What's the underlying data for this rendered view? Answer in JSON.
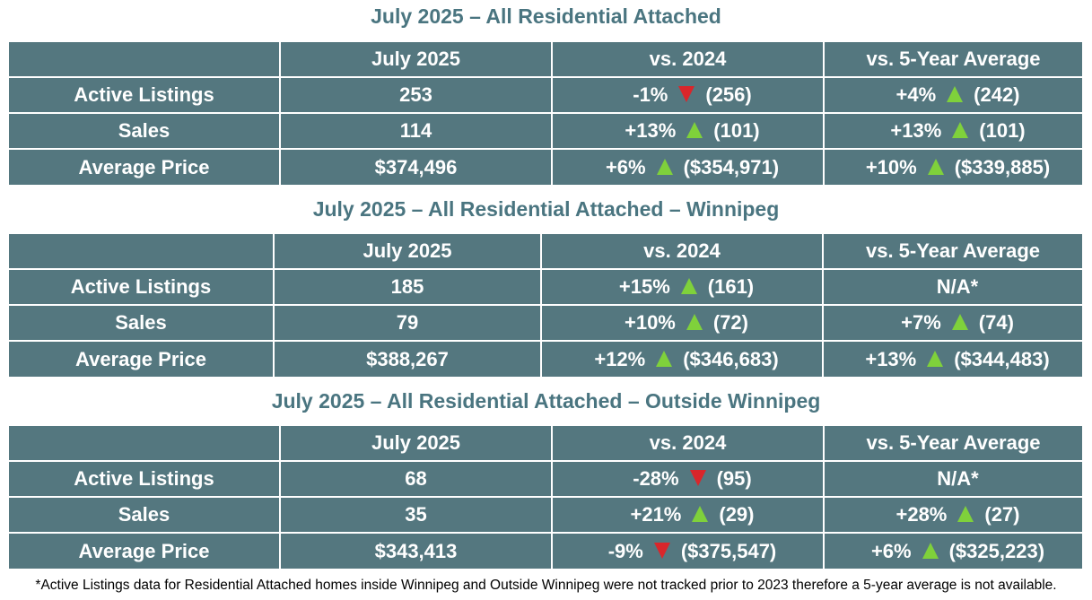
{
  "columns": [
    "",
    "July 2025",
    "vs. 2024",
    "vs. 5-Year Average"
  ],
  "colors": {
    "table_background": "#54777f",
    "title": "#4a7580",
    "increase_arrow": "#7fd13b",
    "decrease_arrow": "#d9262b"
  },
  "tables": [
    {
      "title": "July 2025 – All Residential Attached",
      "rows": [
        {
          "label": "Active Listings",
          "current": "253",
          "vs_2024": {
            "pct": "-1%",
            "dir": "down",
            "prev": "(256)"
          },
          "vs_5yr": {
            "pct": "+4%",
            "dir": "up",
            "prev": "(242)"
          }
        },
        {
          "label": "Sales",
          "current": "114",
          "vs_2024": {
            "pct": "+13%",
            "dir": "up",
            "prev": "(101)"
          },
          "vs_5yr": {
            "pct": "+13%",
            "dir": "up",
            "prev": "(101)"
          }
        },
        {
          "label": "Average Price",
          "current": "$374,496",
          "vs_2024": {
            "pct": "+6%",
            "dir": "up",
            "prev": "($354,971)"
          },
          "vs_5yr": {
            "pct": "+10%",
            "dir": "up",
            "prev": "($339,885)"
          }
        }
      ]
    },
    {
      "title": "July 2025 – All Residential Attached – Winnipeg",
      "rows": [
        {
          "label": "Active Listings",
          "current": "185",
          "vs_2024": {
            "pct": "+15%",
            "dir": "up",
            "prev": "(161)"
          },
          "vs_5yr": {
            "na": "N/A*"
          }
        },
        {
          "label": "Sales",
          "current": "79",
          "vs_2024": {
            "pct": "+10%",
            "dir": "up",
            "prev": "(72)"
          },
          "vs_5yr": {
            "pct": "+7%",
            "dir": "up",
            "prev": "(74)"
          }
        },
        {
          "label": "Average Price",
          "current": "$388,267",
          "vs_2024": {
            "pct": "+12%",
            "dir": "up",
            "prev": "($346,683)"
          },
          "vs_5yr": {
            "pct": "+13%",
            "dir": "up",
            "prev": "($344,483)"
          }
        }
      ]
    },
    {
      "title": "July 2025 – All Residential Attached – Outside Winnipeg",
      "rows": [
        {
          "label": "Active Listings",
          "current": "68",
          "vs_2024": {
            "pct": "-28%",
            "dir": "down",
            "prev": "(95)"
          },
          "vs_5yr": {
            "na": "N/A*"
          }
        },
        {
          "label": "Sales",
          "current": "35",
          "vs_2024": {
            "pct": "+21%",
            "dir": "up",
            "prev": "(29)"
          },
          "vs_5yr": {
            "pct": "+28%",
            "dir": "up",
            "prev": "(27)"
          }
        },
        {
          "label": "Average Price",
          "current": "$343,413",
          "vs_2024": {
            "pct": "-9%",
            "dir": "down",
            "prev": "($375,547)"
          },
          "vs_5yr": {
            "pct": "+6%",
            "dir": "up",
            "prev": "($325,223)"
          }
        }
      ]
    }
  ],
  "footnote": "*Active Listings data for Residential Attached homes inside Winnipeg and Outside Winnipeg were not tracked prior to 2023 therefore a 5-year average is not available."
}
